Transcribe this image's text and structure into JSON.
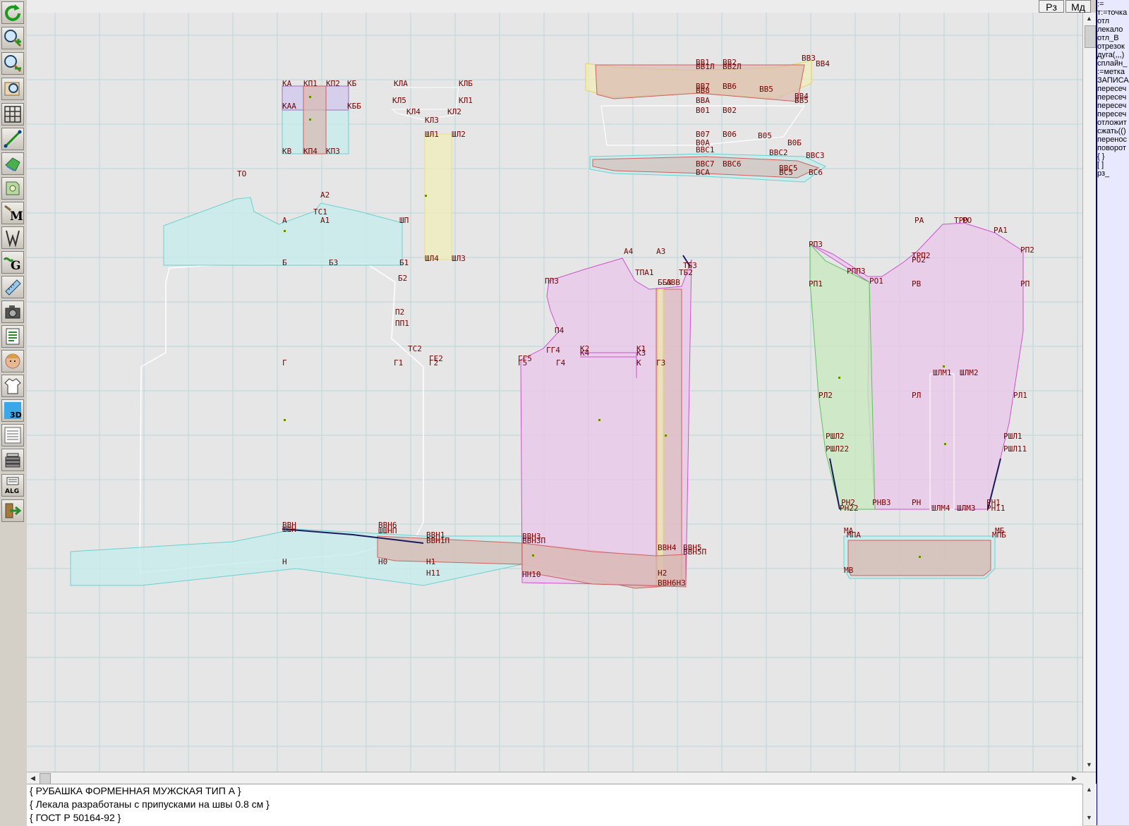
{
  "topbar": {
    "rz_label": "Рз",
    "md_label": "Мд"
  },
  "toolbar": {
    "tools": [
      "refresh-icon",
      "zoom-in-icon",
      "zoom-out-icon",
      "zoom-fit-icon",
      "grid-icon",
      "line-tool-icon",
      "pattern-icon",
      "piece-icon",
      "measure-m-icon",
      "wizard-w-icon",
      "layout-g-icon",
      "ruler-icon",
      "camera-icon",
      "report-icon",
      "model-face-icon",
      "garment-icon",
      "view-3d-icon",
      "list-icon",
      "stack-icon",
      "algorithm-icon",
      "exit-icon"
    ],
    "labels": {
      "m": "M",
      "g": "G",
      "d3": "3D",
      "alg": "ALG"
    }
  },
  "command_panel": {
    "lines": [
      ":=",
      "т:=точка",
      "отл",
      "лекало",
      "отл_В",
      "отрезок",
      "дуга(,,,)",
      "сплайн_",
      ":=метка",
      "ЗАПИСА",
      "пересеч",
      "пересеч",
      "пересеч",
      "пересеч",
      "отложит",
      "сжать(()",
      "перенос",
      "поворот",
      "{ }",
      "[ ]",
      "рз_"
    ]
  },
  "notes": {
    "lines": [
      "{ РУБАШКА ФОРМЕННАЯ МУЖСКАЯ ТИП А }",
      "{ Лекала разработаны с припусками на швы 0.8 см }",
      "{ ГОСТ Р 50164-92 }"
    ]
  },
  "colors": {
    "grid": "#b8d8d8",
    "canvas_bg": "#e6e6e6",
    "cyan_fill": "#c8ecec",
    "pink_fill": "#e8c8e8",
    "brown_fill": "#d8b8b0",
    "yellow_fill": "#f0eebc",
    "green_fill": "#c8e8c0",
    "lavender_fill": "#d8c8ec",
    "label": "#7a0000"
  },
  "points": {
    "yoke": [
      "КА",
      "КП1",
      "КП2",
      "КБ",
      "КАА",
      "КББ",
      "КВ",
      "КП4",
      "КП3"
    ],
    "cuff_top": [
      "КЛА",
      "КЛБ",
      "КЛ5",
      "КЛ1",
      "КЛ4",
      "КЛ2",
      "КЛ3",
      "ШЛ1",
      "ШЛ2",
      "ШЛ4",
      "ШЛ3"
    ],
    "back": [
      "ТО",
      "А2",
      "ТС1",
      "А1",
      "А",
      "ШП",
      "Б",
      "Б3",
      "Б1",
      "Б2",
      "П2",
      "ПП1",
      "ТС2",
      "Г1",
      "Г2",
      "ГЕ2",
      "Г",
      "ВВН",
      "ШШН",
      "ВВН6",
      "ШШНП",
      "Н0",
      "Н1",
      "Н11",
      "Н",
      "ВВН1",
      "ВВН1П"
    ],
    "front": [
      "А4",
      "А3",
      "ТБ3",
      "ТПА1",
      "ТБ2",
      "ББ3",
      "АВВ",
      "ПП3",
      "П4",
      "ГГ5",
      "ГГ4",
      "К2",
      "К1",
      "К3",
      "К4",
      "К",
      "Г5",
      "Г4",
      "Г3",
      "ВВН3",
      "ВВН3П",
      "НН10",
      "ВВН4",
      "ВВН5",
      "ВВН5П",
      "Н2",
      "ВВН6Н3"
    ],
    "collar": [
      "ВВ1",
      "ВВ2",
      "ВВ1Л",
      "ВВ2Л",
      "ВВ3",
      "ВВ4",
      "ВВ7",
      "ВВ6",
      "ВВ8",
      "ВВ5",
      "ВВА",
      "ВВ4",
      "ВВ5",
      "В01",
      "В02",
      "В07",
      "В06",
      "В05",
      "В0А",
      "В0Б",
      "ВВС1",
      "ВВС2",
      "ВВС3",
      "ВВС7",
      "ВВС6",
      "ВВС5",
      "ВСА",
      "ВС5",
      "ВС6"
    ],
    "sleeve": [
      "РА",
      "ТРО",
      "РО",
      "РА1",
      "РП3",
      "ТРП2",
      "РО2",
      "РП2",
      "РПП3",
      "РП1",
      "РО1",
      "РВ",
      "РП",
      "ШЛМ1",
      "ШЛМ2",
      "РЛ2",
      "РЛ",
      "РЛ1",
      "РШЛ2",
      "РШЛ1",
      "РШЛ22",
      "РШЛ11",
      "РН2",
      "РН22",
      "РНВ3",
      "РН",
      "ШЛМ4",
      "ШЛМ3",
      "РН1",
      "РН11",
      "МА",
      "МПА",
      "МБ",
      "МПБ",
      "МВ"
    ]
  }
}
